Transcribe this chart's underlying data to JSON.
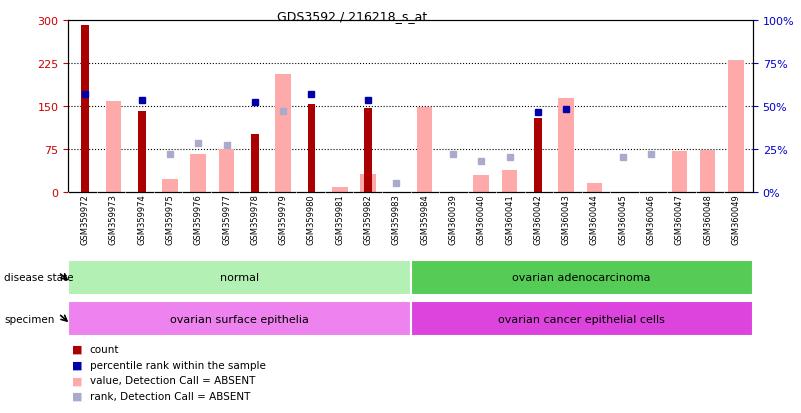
{
  "title": "GDS3592 / 216218_s_at",
  "samples": [
    "GSM359972",
    "GSM359973",
    "GSM359974",
    "GSM359975",
    "GSM359976",
    "GSM359977",
    "GSM359978",
    "GSM359979",
    "GSM359980",
    "GSM359981",
    "GSM359982",
    "GSM359983",
    "GSM359984",
    "GSM360039",
    "GSM360040",
    "GSM360041",
    "GSM360042",
    "GSM360043",
    "GSM360044",
    "GSM360045",
    "GSM360046",
    "GSM360047",
    "GSM360048",
    "GSM360049"
  ],
  "count": [
    290,
    0,
    140,
    0,
    0,
    0,
    100,
    0,
    152,
    0,
    145,
    0,
    0,
    0,
    0,
    0,
    128,
    0,
    0,
    0,
    0,
    0,
    0,
    0
  ],
  "percentile_rank": [
    57,
    0,
    53,
    0,
    0,
    0,
    52,
    0,
    57,
    0,
    53,
    0,
    0,
    0,
    0,
    0,
    46,
    48,
    0,
    0,
    0,
    0,
    0,
    0
  ],
  "value_absent": [
    0,
    158,
    0,
    22,
    65,
    75,
    0,
    205,
    0,
    8,
    30,
    0,
    148,
    0,
    28,
    38,
    0,
    163,
    15,
    0,
    0,
    70,
    72,
    230
  ],
  "rank_absent": [
    0,
    0,
    0,
    22,
    28,
    27,
    0,
    47,
    0,
    0,
    0,
    5,
    0,
    22,
    18,
    20,
    0,
    0,
    0,
    20,
    22,
    0,
    0,
    0
  ],
  "disease_state_groups": [
    {
      "label": "normal",
      "start": 0,
      "end": 12,
      "color": "#b3f0b3"
    },
    {
      "label": "ovarian adenocarcinoma",
      "start": 12,
      "end": 24,
      "color": "#55cc55"
    }
  ],
  "specimen_groups": [
    {
      "label": "ovarian surface epithelia",
      "start": 0,
      "end": 12,
      "color": "#ee82ee"
    },
    {
      "label": "ovarian cancer epithelial cells",
      "start": 12,
      "end": 24,
      "color": "#dd44dd"
    }
  ],
  "ylim_left": [
    0,
    300
  ],
  "ylim_right": [
    0,
    100
  ],
  "yticks_left": [
    0,
    75,
    150,
    225,
    300
  ],
  "yticks_right": [
    0,
    25,
    50,
    75,
    100
  ],
  "bar_color_count": "#aa0000",
  "bar_color_value_absent": "#ffaaaa",
  "marker_color_percentile": "#0000aa",
  "marker_color_rank_absent": "#aaaacc",
  "xticklabel_bg": "#c8c8c8"
}
